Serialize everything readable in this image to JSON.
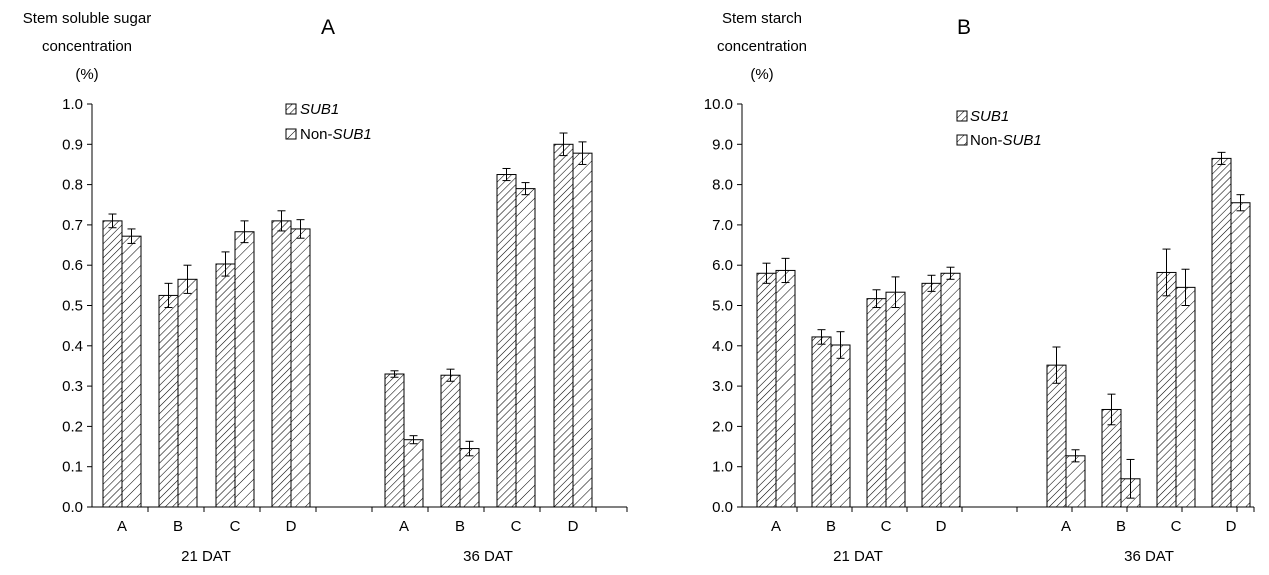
{
  "patterns": {
    "sub1": "diagonal-hatch-dense",
    "nonsub1": "diagonal-hatch-sparse"
  },
  "chart_data": [
    {
      "type": "bar",
      "panel_label": "A",
      "ylabel_lines": [
        "Stem soluble sugar",
        "concentration",
        "(%)"
      ],
      "ylim": [
        0,
        1.0
      ],
      "ytick_labels": [
        "0.0",
        "0.1",
        "0.2",
        "0.3",
        "0.4",
        "0.5",
        "0.6",
        "0.7",
        "0.8",
        "0.9",
        "1.0"
      ],
      "categories": [
        "A",
        "B",
        "C",
        "D",
        "A",
        "B",
        "C",
        "D"
      ],
      "groups": [
        "21 DAT",
        "36 DAT"
      ],
      "legend": {
        "placement": "top-center",
        "entries": [
          {
            "prefix": "",
            "italic": "SUB1"
          },
          {
            "prefix": "Non-",
            "italic": "SUB1"
          }
        ]
      },
      "series": [
        {
          "name": "SUB1",
          "values": [
            0.71,
            0.525,
            0.603,
            0.71,
            0.33,
            0.327,
            0.825,
            0.9
          ],
          "errors": [
            0.017,
            0.03,
            0.03,
            0.025,
            0.008,
            0.015,
            0.015,
            0.028
          ]
        },
        {
          "name": "Non-SUB1",
          "values": [
            0.672,
            0.565,
            0.683,
            0.69,
            0.167,
            0.145,
            0.79,
            0.878
          ],
          "errors": [
            0.018,
            0.035,
            0.027,
            0.023,
            0.01,
            0.018,
            0.015,
            0.028
          ]
        }
      ]
    },
    {
      "type": "bar",
      "panel_label": "B",
      "ylabel_lines": [
        "Stem starch",
        "concentration",
        "(%)"
      ],
      "ylim": [
        0,
        10.0
      ],
      "ytick_labels": [
        "0.0",
        "1.0",
        "2.0",
        "3.0",
        "4.0",
        "5.0",
        "6.0",
        "7.0",
        "8.0",
        "9.0",
        "10.0"
      ],
      "categories": [
        "A",
        "B",
        "C",
        "D",
        "A",
        "B",
        "C",
        "D"
      ],
      "groups": [
        "21 DAT",
        "36 DAT"
      ],
      "legend": {
        "placement": "top-center",
        "entries": [
          {
            "prefix": "",
            "italic": "SUB1"
          },
          {
            "prefix": "Non-",
            "italic": "SUB1"
          }
        ]
      },
      "series": [
        {
          "name": "SUB1",
          "values": [
            5.8,
            4.22,
            5.17,
            5.55,
            3.52,
            2.42,
            5.82,
            8.65
          ],
          "errors": [
            0.25,
            0.18,
            0.22,
            0.2,
            0.45,
            0.38,
            0.58,
            0.15
          ]
        },
        {
          "name": "Non-SUB1",
          "values": [
            5.87,
            4.02,
            5.33,
            5.8,
            1.27,
            0.7,
            5.45,
            7.55
          ],
          "errors": [
            0.3,
            0.33,
            0.38,
            0.15,
            0.15,
            0.48,
            0.45,
            0.2
          ]
        }
      ]
    }
  ]
}
